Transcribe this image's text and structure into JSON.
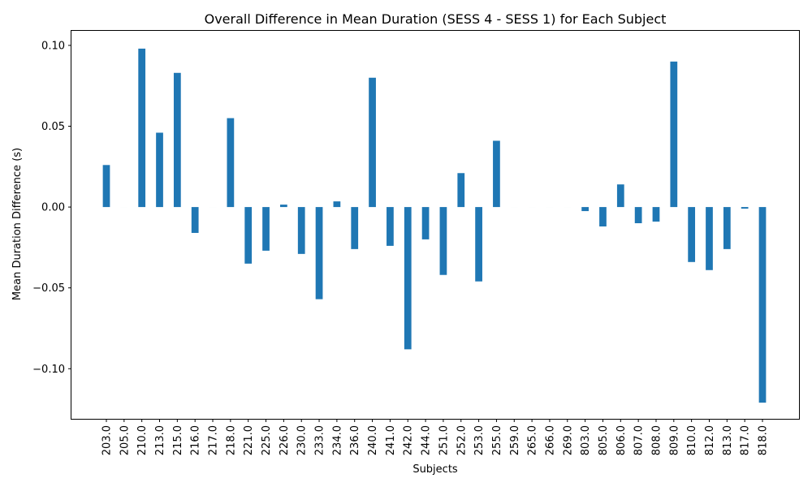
{
  "chart_data": {
    "type": "bar",
    "title": "Overall Difference in Mean Duration (SESS 4 - SESS 1) for Each Subject",
    "xlabel": "Subjects",
    "ylabel": "Mean Duration Difference (s)",
    "ylim": [
      -0.131,
      0.109
    ],
    "yticks": [
      -0.1,
      -0.05,
      0.0,
      0.05,
      0.1
    ],
    "ytick_labels": [
      "−0.10",
      "−0.05",
      "0.00",
      "0.05",
      "0.10"
    ],
    "grid": false,
    "bar_color": "#1f77b4",
    "categories": [
      "203.0",
      "205.0",
      "210.0",
      "213.0",
      "215.0",
      "216.0",
      "217.0",
      "218.0",
      "221.0",
      "225.0",
      "226.0",
      "230.0",
      "233.0",
      "234.0",
      "236.0",
      "240.0",
      "241.0",
      "242.0",
      "244.0",
      "251.0",
      "252.0",
      "253.0",
      "255.0",
      "259.0",
      "265.0",
      "266.0",
      "269.0",
      "803.0",
      "805.0",
      "806.0",
      "807.0",
      "808.0",
      "809.0",
      "810.0",
      "812.0",
      "813.0",
      "817.0",
      "818.0"
    ],
    "values": [
      0.026,
      0.0,
      0.098,
      0.046,
      0.083,
      -0.016,
      0.0,
      0.055,
      -0.035,
      -0.027,
      0.0015,
      -0.029,
      -0.057,
      0.0035,
      -0.026,
      0.08,
      -0.024,
      -0.088,
      -0.02,
      -0.042,
      0.021,
      -0.046,
      0.041,
      0.0,
      0.0,
      0.0,
      0.0,
      -0.0025,
      -0.012,
      0.014,
      -0.01,
      -0.009,
      0.09,
      -0.034,
      -0.039,
      -0.026,
      -0.001,
      -0.121
    ]
  }
}
